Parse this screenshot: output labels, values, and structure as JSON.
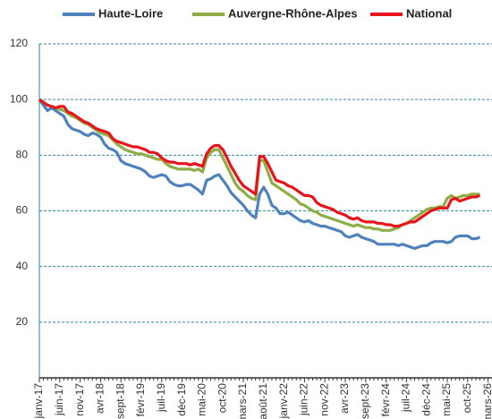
{
  "chart_data": {
    "type": "line",
    "categories": [
      "janv-17",
      null,
      null,
      null,
      null,
      "juin-17",
      null,
      null,
      null,
      null,
      "nov-17",
      null,
      null,
      null,
      null,
      "avr-18",
      null,
      null,
      null,
      null,
      "sept-18",
      null,
      null,
      null,
      null,
      "févr-19",
      null,
      null,
      null,
      null,
      "juil-19",
      null,
      null,
      null,
      null,
      "déc-19",
      null,
      null,
      null,
      null,
      "mai-20",
      null,
      null,
      null,
      null,
      "oct-20",
      null,
      null,
      null,
      null,
      "mars-21",
      null,
      null,
      null,
      null,
      "août-21",
      null,
      null,
      null,
      null,
      "janv-22",
      null,
      null,
      null,
      null,
      "juin-22",
      null,
      null,
      null,
      null,
      "nov-22",
      null,
      null,
      null,
      null,
      "avr-23",
      null,
      null,
      null,
      null,
      "sept-23",
      null,
      null,
      null,
      null,
      "févr-24",
      null,
      null,
      null,
      null,
      "juil-24",
      null,
      null,
      null,
      null,
      "déc-24",
      null,
      null,
      null,
      null,
      "mai-25",
      null,
      null,
      null,
      null,
      "oct-25",
      null,
      null,
      null,
      null,
      "mars-26"
    ],
    "series": [
      {
        "name": "Haute-Loire",
        "color": "#4f81bd",
        "values": [
          100,
          98,
          96,
          97,
          96,
          95,
          94,
          91,
          89.5,
          89,
          88.5,
          87.5,
          87,
          88,
          87.5,
          86.5,
          84,
          82.5,
          82,
          81,
          78,
          77,
          76.5,
          76,
          75.5,
          75,
          74,
          72.5,
          72,
          72.5,
          73,
          72.5,
          70.5,
          69.5,
          69,
          69,
          69.5,
          69.5,
          68.5,
          67.5,
          66,
          71,
          71.5,
          72.5,
          73,
          71,
          69,
          66.5,
          65,
          63.5,
          62,
          60,
          58.5,
          57.5,
          66,
          68.5,
          66,
          62,
          61,
          59,
          59,
          59.5,
          58.5,
          57.5,
          56.5,
          56,
          56.5,
          55.5,
          55,
          54.5,
          54.5,
          54,
          53.5,
          53,
          52.5,
          51,
          50.5,
          51,
          51.5,
          50.5,
          50,
          49.5,
          49,
          48,
          48,
          48,
          48,
          48,
          47.5,
          48,
          47.5,
          47,
          46.5,
          47,
          47.5,
          47.5,
          48.5,
          49,
          49,
          49,
          48.5,
          49,
          50.5,
          51,
          51,
          51,
          50,
          50,
          50.5,
          null,
          null
        ]
      },
      {
        "name": "Auvergne-Rhône-Alpes",
        "color": "#8fad45",
        "values": [
          100,
          99,
          98,
          97.5,
          97,
          96.5,
          96,
          95,
          94,
          93.5,
          92.5,
          91.5,
          91,
          90,
          89,
          88,
          87.5,
          87,
          85.5,
          84,
          83,
          82,
          81.5,
          81,
          80.5,
          80.5,
          80,
          79.5,
          79,
          78.5,
          78.5,
          77,
          76,
          75.5,
          75,
          75,
          75,
          75,
          74.5,
          75,
          74,
          79,
          81,
          82,
          82,
          79,
          76,
          73,
          70,
          68,
          67,
          65.5,
          64.5,
          64,
          78,
          78,
          74,
          70,
          69,
          68,
          67,
          66,
          65,
          64,
          62.5,
          62,
          61,
          60,
          59.5,
          58.5,
          58,
          57.5,
          57,
          56.5,
          56,
          55.5,
          55,
          54.5,
          55,
          54.5,
          54,
          54,
          53.5,
          53.5,
          53,
          53,
          53,
          53.5,
          54,
          55,
          55.5,
          56.5,
          57.5,
          58.5,
          59.5,
          60.5,
          61,
          61,
          61.5,
          61.5,
          64.5,
          65.5,
          64.5,
          65,
          65.5,
          65.5,
          66,
          66,
          66,
          null,
          null
        ]
      },
      {
        "name": "National",
        "color": "#e8141b",
        "values": [
          100,
          99,
          98,
          97.5,
          97,
          97.5,
          97.5,
          95.5,
          95,
          94,
          93,
          92,
          91.5,
          90.5,
          89.5,
          89,
          88.5,
          88,
          86,
          85,
          84.5,
          84,
          83.5,
          83,
          83,
          82.5,
          82,
          81,
          81,
          80.5,
          79,
          78,
          77.5,
          77.5,
          77,
          77,
          77,
          76.5,
          77,
          76.5,
          76,
          80.5,
          82.5,
          83.5,
          83.5,
          82,
          79,
          76,
          73.5,
          71,
          69,
          68,
          67,
          66,
          79.5,
          79.5,
          77,
          74,
          71,
          70.5,
          70,
          69,
          68.5,
          67.5,
          66.5,
          65.5,
          65.5,
          65,
          63,
          62,
          61.5,
          61,
          60.5,
          59.5,
          59,
          58.5,
          57.5,
          57,
          57.5,
          56.5,
          56,
          56,
          56,
          55.5,
          55.5,
          55,
          55,
          54.5,
          54.5,
          55,
          55.5,
          56,
          56,
          57,
          58,
          59,
          60,
          60.5,
          61,
          61,
          61,
          64,
          64.5,
          63.5,
          64,
          64.5,
          65,
          65,
          65.5,
          null,
          null
        ]
      }
    ],
    "ylim": [
      0,
      120
    ],
    "yticks": [
      20,
      40,
      60,
      80,
      100,
      120
    ],
    "grid": true
  }
}
